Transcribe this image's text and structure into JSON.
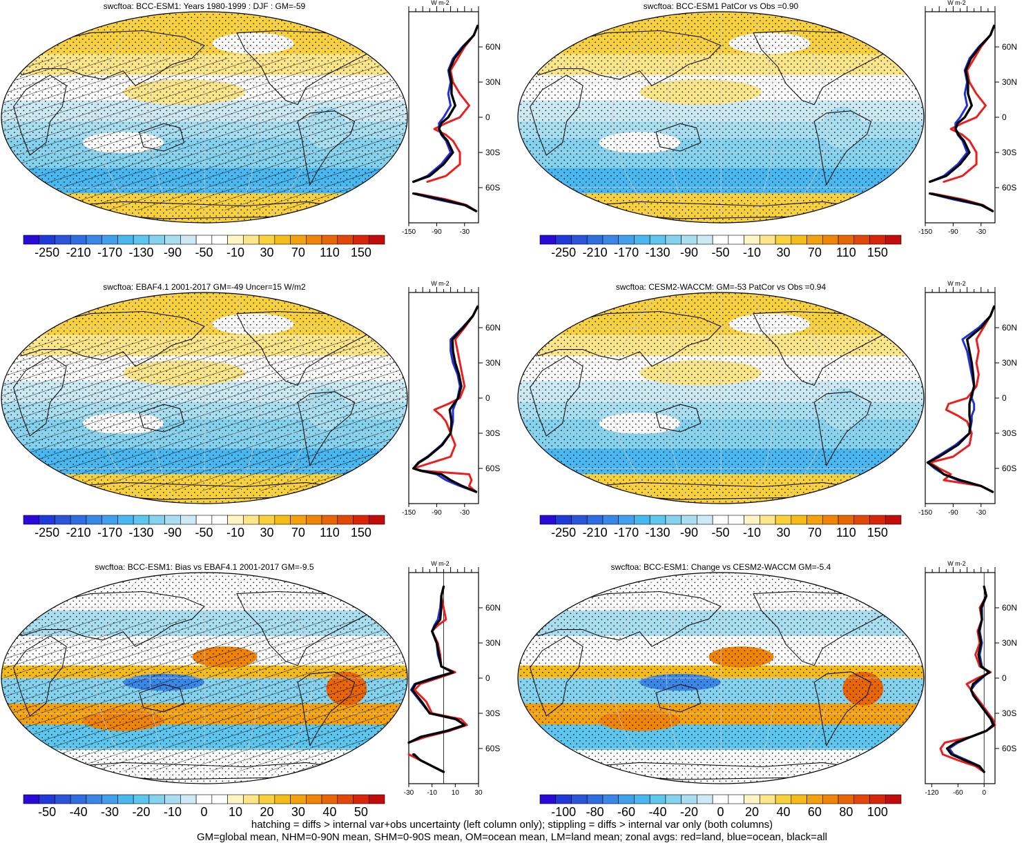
{
  "footer": {
    "line1": "hatching = diffs > internal var+obs uncertainty (left column only); stippling = diffs > internal var only (both columns)",
    "line2": "GM=global mean, NHM=0-90N mean, SHM=0-90S mean, OM=ocean mean, LM=land mean; zonal avgs: red=land, blue=ocean, black=all"
  },
  "colors": {
    "land_curve": "#ee1c1c",
    "ocean_curve": "#1f2fe0",
    "all_curve": "#000000",
    "coast": "#111111",
    "stipple": "#000000"
  },
  "chart_data": [
    {
      "type": "heatmap",
      "title": "swcftoa: BCC-ESM1: Years 1980-1999 : DJF : GM=-59",
      "colorbar_labels": [
        "-250",
        "-210",
        "-170",
        "-130",
        "-90",
        "-50",
        "-10",
        "30",
        "70",
        "110",
        "150"
      ],
      "levels": [
        -270,
        -250,
        -230,
        -210,
        -190,
        -170,
        -150,
        -130,
        -110,
        -90,
        -70,
        -50,
        -30,
        -10,
        10,
        30,
        50,
        70,
        90,
        110,
        130,
        150,
        170
      ],
      "palette": "clim",
      "hatching": true,
      "zonal": {
        "unit": "W m-2",
        "xlim": [
          -150,
          0
        ],
        "xticks": [
          "-150",
          "-90",
          "-30"
        ],
        "yticks": [
          "60N",
          "30N",
          "0",
          "30S",
          "60S"
        ],
        "lat": [
          78,
          70,
          60,
          50,
          40,
          30,
          20,
          10,
          0,
          -5,
          -10,
          -15,
          -20,
          -30,
          -40,
          -50,
          -55,
          -62,
          -65,
          -70,
          -75,
          -80
        ],
        "land": [
          -2,
          -10,
          -30,
          -45,
          -60,
          -55,
          -40,
          -20,
          -40,
          -70,
          -95,
          -70,
          -55,
          -40,
          -40,
          -70,
          -110,
          null,
          -135,
          -70,
          -25,
          -5
        ],
        "ocean": [
          -2,
          -10,
          -35,
          -55,
          -65,
          -60,
          -65,
          -60,
          -75,
          -85,
          -85,
          -80,
          -70,
          -60,
          -80,
          -110,
          -140,
          null,
          -140,
          -90,
          -30,
          -5
        ],
        "all": [
          -2,
          -10,
          -33,
          -52,
          -63,
          -58,
          -58,
          -50,
          -65,
          -80,
          -85,
          -78,
          -67,
          -55,
          -75,
          -105,
          -140,
          null,
          -140,
          -80,
          -28,
          -5
        ]
      }
    },
    {
      "type": "heatmap",
      "title": "swcftoa: BCC-ESM1 PatCor vs Obs =0.90",
      "colorbar_labels": [
        "-250",
        "-210",
        "-170",
        "-130",
        "-90",
        "-50",
        "-10",
        "30",
        "70",
        "110",
        "150"
      ],
      "levels": [
        -270,
        -250,
        -230,
        -210,
        -190,
        -170,
        -150,
        -130,
        -110,
        -90,
        -70,
        -50,
        -30,
        -10,
        10,
        30,
        50,
        70,
        90,
        110,
        130,
        150,
        170
      ],
      "palette": "clim",
      "hatching": false,
      "zonal": {
        "unit": "W m-2",
        "xlim": [
          -150,
          0
        ],
        "xticks": [
          "-150",
          "-90",
          "-30"
        ],
        "yticks": [
          "60N",
          "30N",
          "0",
          "30S",
          "60S"
        ],
        "lat": [
          78,
          70,
          60,
          50,
          40,
          30,
          20,
          10,
          0,
          -5,
          -10,
          -15,
          -20,
          -30,
          -40,
          -50,
          -55,
          -62,
          -65,
          -70,
          -75,
          -80
        ],
        "land": [
          -2,
          -10,
          -30,
          -45,
          -60,
          -55,
          -40,
          -20,
          -40,
          -70,
          -95,
          -70,
          -55,
          -40,
          -40,
          -70,
          -110,
          null,
          -135,
          -70,
          -25,
          -5
        ],
        "ocean": [
          -2,
          -10,
          -35,
          -55,
          -65,
          -60,
          -65,
          -60,
          -75,
          -85,
          -85,
          -80,
          -70,
          -60,
          -80,
          -110,
          -140,
          null,
          -140,
          -90,
          -30,
          -5
        ],
        "all": [
          -2,
          -10,
          -33,
          -52,
          -63,
          -58,
          -58,
          -50,
          -65,
          -80,
          -85,
          -78,
          -67,
          -55,
          -75,
          -105,
          -140,
          null,
          -140,
          -80,
          -28,
          -5
        ]
      }
    },
    {
      "type": "heatmap",
      "title": "swcftoa: EBAF4.1 2001-2017 GM=-49 Uncer=15 W/m2",
      "colorbar_labels": [
        "-250",
        "-210",
        "-170",
        "-130",
        "-90",
        "-50",
        "-10",
        "30",
        "70",
        "110",
        "150"
      ],
      "levels": [
        -270,
        -250,
        -230,
        -210,
        -190,
        -170,
        -150,
        -130,
        -110,
        -90,
        -70,
        -50,
        -30,
        -10,
        10,
        30,
        50,
        70,
        90,
        110,
        130,
        150,
        170
      ],
      "palette": "clim",
      "hatching": true,
      "zonal": {
        "unit": "W m-2",
        "xlim": [
          -150,
          0
        ],
        "xticks": [
          "-150",
          "-90",
          "-30"
        ],
        "yticks": [
          "60N",
          "30N",
          "0",
          "30S",
          "60S"
        ],
        "lat": [
          78,
          70,
          60,
          50,
          40,
          30,
          20,
          10,
          0,
          -5,
          -10,
          -15,
          -20,
          -30,
          -40,
          -50,
          -55,
          -60,
          -62,
          -65,
          -70,
          -75,
          -80
        ],
        "land": [
          -2,
          -12,
          -30,
          -50,
          -45,
          -40,
          -35,
          -30,
          -40,
          -65,
          -95,
          -80,
          -70,
          -60,
          -50,
          -60,
          -100,
          -140,
          -120,
          -20,
          -15,
          -20,
          -5
        ],
        "ocean": [
          -2,
          -12,
          -35,
          -60,
          -60,
          -55,
          -45,
          -40,
          -45,
          -50,
          -55,
          -55,
          -55,
          -60,
          -80,
          -110,
          -130,
          -140,
          -125,
          -90,
          -70,
          -40,
          -5
        ],
        "all": [
          -2,
          -12,
          -33,
          -56,
          -55,
          -50,
          -42,
          -37,
          -44,
          -53,
          -62,
          -60,
          -58,
          -60,
          -78,
          -108,
          -128,
          -140,
          -124,
          -80,
          -60,
          -35,
          -5
        ]
      }
    },
    {
      "type": "heatmap",
      "title": "swcftoa: CESM2-WACCM: GM=-53 PatCor vs Obs =0.94",
      "colorbar_labels": [
        "-250",
        "-210",
        "-170",
        "-130",
        "-90",
        "-50",
        "-10",
        "30",
        "70",
        "110",
        "150"
      ],
      "levels": [
        -270,
        -250,
        -230,
        -210,
        -190,
        -170,
        -150,
        -130,
        -110,
        -90,
        -70,
        -50,
        -30,
        -10,
        10,
        30,
        50,
        70,
        90,
        110,
        130,
        150,
        170
      ],
      "palette": "clim",
      "hatching": false,
      "zonal": {
        "unit": "W m-2",
        "xlim": [
          -150,
          0
        ],
        "xticks": [
          "-150",
          "-90",
          "-30"
        ],
        "yticks": [
          "60N",
          "30N",
          "0",
          "30S",
          "60S"
        ],
        "lat": [
          78,
          70,
          60,
          50,
          40,
          30,
          20,
          10,
          0,
          -5,
          -10,
          -15,
          -20,
          -30,
          -40,
          -50,
          -55,
          -60,
          -65,
          -70,
          -75,
          -80
        ],
        "land": [
          -2,
          -10,
          -25,
          -40,
          -35,
          -40,
          -35,
          -40,
          -60,
          -100,
          -105,
          -80,
          -60,
          -50,
          -55,
          -90,
          -140,
          -120,
          -95,
          -110,
          -30,
          -5
        ],
        "ocean": [
          -2,
          -10,
          -35,
          -70,
          -60,
          -55,
          -50,
          -45,
          -50,
          -45,
          -45,
          -50,
          -50,
          -55,
          -85,
          -125,
          -145,
          -130,
          -110,
          -80,
          -30,
          -5
        ],
        "all": [
          -2,
          -10,
          -30,
          -60,
          -55,
          -50,
          -47,
          -45,
          -52,
          -55,
          -55,
          -55,
          -53,
          -55,
          -80,
          -120,
          -145,
          -125,
          -110,
          -75,
          -30,
          -5
        ]
      }
    },
    {
      "type": "heatmap",
      "title": "swcftoa: BCC-ESM1: Bias vs EBAF4.1 2001-2017 GM=-9.5",
      "colorbar_labels": [
        "-50",
        "-40",
        "-30",
        "-20",
        "-10",
        "0",
        "10",
        "20",
        "30",
        "40",
        "50"
      ],
      "levels": [
        -55,
        -50,
        -45,
        -40,
        -35,
        -30,
        -25,
        -20,
        -15,
        -10,
        -5,
        0,
        5,
        10,
        15,
        20,
        25,
        30,
        35,
        40,
        45,
        50,
        55
      ],
      "palette": "diff",
      "hatching": true,
      "zonal": {
        "unit": "W m-2",
        "xlim": [
          -30,
          30
        ],
        "xticks": [
          "-30",
          "-10",
          "10",
          "30"
        ],
        "yticks": [
          "60N",
          "30N",
          "0",
          "30S",
          "60S"
        ],
        "lat": [
          78,
          70,
          60,
          50,
          45,
          40,
          30,
          20,
          10,
          5,
          0,
          -5,
          -10,
          -20,
          -30,
          -35,
          -40,
          -45,
          -50,
          -55,
          -60,
          -65,
          -70,
          -75,
          -80
        ],
        "land": [
          0,
          -2,
          0,
          2,
          -5,
          -10,
          -5,
          -3,
          -2,
          10,
          -5,
          -20,
          -25,
          -15,
          -10,
          15,
          20,
          5,
          -15,
          -30,
          null,
          -30,
          -20,
          -10,
          0
        ],
        "ocean": [
          0,
          -2,
          -3,
          -5,
          -8,
          -10,
          -6,
          -5,
          -2,
          8,
          -10,
          -25,
          -28,
          -20,
          -12,
          10,
          18,
          2,
          -20,
          -30,
          null,
          -25,
          -20,
          -10,
          0
        ],
        "all": [
          0,
          -2,
          -2,
          -3,
          -7,
          -10,
          -6,
          -4,
          -2,
          8,
          -8,
          -24,
          -27,
          -19,
          -12,
          11,
          18,
          3,
          -19,
          -30,
          null,
          -26,
          -20,
          -10,
          0
        ]
      }
    },
    {
      "type": "heatmap",
      "title": "swcftoa: BCC-ESM1: Change vs CESM2-WACCM GM=-5.4",
      "colorbar_labels": [
        "-100",
        "-80",
        "-60",
        "-40",
        "-20",
        "0",
        "20",
        "40",
        "60",
        "80",
        "100"
      ],
      "levels": [
        -110,
        -100,
        -90,
        -80,
        -70,
        -60,
        -50,
        -40,
        -30,
        -20,
        -10,
        0,
        10,
        20,
        30,
        40,
        50,
        60,
        70,
        80,
        90,
        100,
        110
      ],
      "palette": "diff",
      "hatching": false,
      "zonal": {
        "unit": "W m-2",
        "xlim": [
          -135,
          25
        ],
        "xticks": [
          "-120",
          "-60",
          "0"
        ],
        "yticks": [
          "60N",
          "30N",
          "0",
          "30S",
          "60S"
        ],
        "lat": [
          78,
          70,
          60,
          50,
          40,
          30,
          20,
          10,
          5,
          0,
          -5,
          -10,
          -15,
          -20,
          -30,
          -35,
          -40,
          -45,
          -50,
          -55,
          -60,
          -65,
          -70,
          -75,
          -80
        ],
        "land": [
          0,
          5,
          -10,
          -5,
          -15,
          -10,
          -20,
          -10,
          15,
          -15,
          -40,
          -30,
          -20,
          -10,
          10,
          20,
          25,
          5,
          -30,
          -90,
          -100,
          -95,
          -60,
          -20,
          0
        ],
        "ocean": [
          0,
          5,
          -5,
          -5,
          -10,
          -5,
          -10,
          -5,
          10,
          -5,
          -20,
          -30,
          -25,
          -15,
          5,
          15,
          20,
          5,
          -30,
          -60,
          -80,
          -70,
          -40,
          -10,
          0
        ],
        "all": [
          0,
          5,
          -7,
          -5,
          -12,
          -7,
          -13,
          -7,
          12,
          -8,
          -25,
          -30,
          -24,
          -14,
          6,
          16,
          22,
          5,
          -30,
          -65,
          -85,
          -75,
          -45,
          -12,
          0
        ]
      }
    }
  ]
}
